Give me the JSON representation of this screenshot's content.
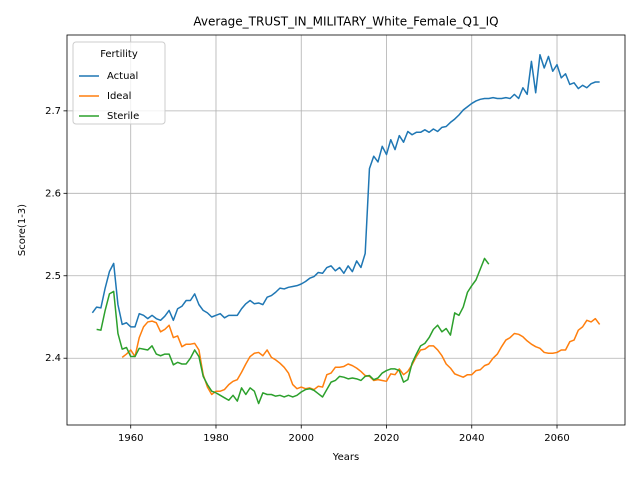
{
  "chart_data": {
    "type": "line",
    "title": "Average_TRUST_IN_MILITARY_White_Female_Q1_IQ",
    "xlabel": "Years",
    "ylabel": "Score(1-3)",
    "x": [
      1951,
      1952,
      1953,
      1954,
      1955,
      1956,
      1957,
      1958,
      1959,
      1960,
      1961,
      1962,
      1963,
      1964,
      1965,
      1966,
      1967,
      1968,
      1969,
      1970,
      1971,
      1972,
      1973,
      1974,
      1975,
      1976,
      1977,
      1978,
      1979,
      1980,
      1981,
      1982,
      1983,
      1984,
      1985,
      1986,
      1987,
      1988,
      1989,
      1990,
      1991,
      1992,
      1993,
      1994,
      1995,
      1996,
      1997,
      1998,
      1999,
      2000,
      2001,
      2002,
      2003,
      2004,
      2005,
      2006,
      2007,
      2008,
      2009,
      2010,
      2011,
      2012,
      2013,
      2014,
      2015,
      2016,
      2017,
      2018,
      2019,
      2020,
      2021,
      2022,
      2023,
      2024,
      2025,
      2026,
      2027,
      2028,
      2029,
      2030,
      2031,
      2032,
      2033,
      2034,
      2035,
      2036,
      2037,
      2038,
      2039,
      2040,
      2041,
      2042,
      2043,
      2044,
      2045,
      2046,
      2047,
      2048,
      2049,
      2050,
      2051,
      2052,
      2053,
      2054,
      2055,
      2056,
      2057,
      2058,
      2059,
      2060,
      2061,
      2062,
      2063,
      2064,
      2065,
      2066,
      2067,
      2068,
      2069,
      2070
    ],
    "series": [
      {
        "name": "Actual",
        "color": "#1f77b4",
        "values": [
          2.455,
          2.462,
          2.461,
          2.485,
          2.505,
          2.515,
          2.465,
          2.441,
          2.443,
          2.438,
          2.438,
          2.454,
          2.452,
          2.448,
          2.452,
          2.448,
          2.446,
          2.451,
          2.458,
          2.446,
          2.46,
          2.463,
          2.47,
          2.47,
          2.478,
          2.465,
          2.458,
          2.455,
          2.45,
          2.452,
          2.454,
          2.449,
          2.452,
          2.452,
          2.452,
          2.46,
          2.466,
          2.47,
          2.466,
          2.467,
          2.465,
          2.474,
          2.476,
          2.48,
          2.485,
          2.484,
          2.486,
          2.487,
          2.488,
          2.49,
          2.493,
          2.497,
          2.499,
          2.504,
          2.503,
          2.51,
          2.512,
          2.506,
          2.51,
          2.503,
          2.512,
          2.505,
          2.518,
          2.51,
          2.527,
          2.63,
          2.645,
          2.638,
          2.657,
          2.647,
          2.665,
          2.653,
          2.67,
          2.662,
          2.675,
          2.671,
          2.674,
          2.674,
          2.677,
          2.674,
          2.678,
          2.675,
          2.68,
          2.681,
          2.686,
          2.69,
          2.695,
          2.701,
          2.705,
          2.709,
          2.712,
          2.714,
          2.715,
          2.715,
          2.716,
          2.715,
          2.715,
          2.716,
          2.715,
          2.72,
          2.715,
          2.728,
          2.72,
          2.76,
          2.722,
          2.768,
          2.752,
          2.766,
          2.748,
          2.756,
          2.74,
          2.745,
          2.732,
          2.734,
          2.727,
          2.731,
          2.728,
          2.733,
          2.735,
          2.735
        ]
      },
      {
        "name": "Ideal",
        "color": "#ff7f0e",
        "values": [
          null,
          null,
          null,
          null,
          null,
          null,
          null,
          2.401,
          2.405,
          2.41,
          2.402,
          2.425,
          2.438,
          2.444,
          2.445,
          2.443,
          2.432,
          2.435,
          2.44,
          2.425,
          2.427,
          2.414,
          2.417,
          2.417,
          2.418,
          2.41,
          2.38,
          2.365,
          2.356,
          2.36,
          2.36,
          2.362,
          2.368,
          2.372,
          2.374,
          2.383,
          2.393,
          2.402,
          2.406,
          2.407,
          2.403,
          2.41,
          2.401,
          2.398,
          2.394,
          2.389,
          2.382,
          2.368,
          2.363,
          2.365,
          2.363,
          2.364,
          2.362,
          2.366,
          2.365,
          2.38,
          2.382,
          2.389,
          2.389,
          2.39,
          2.393,
          2.391,
          2.388,
          2.384,
          2.379,
          2.378,
          2.373,
          2.374,
          2.373,
          2.372,
          2.381,
          2.38,
          2.387,
          2.38,
          2.384,
          2.392,
          2.402,
          2.41,
          2.411,
          2.415,
          2.415,
          2.41,
          2.403,
          2.393,
          2.388,
          2.381,
          2.379,
          2.377,
          2.38,
          2.38,
          2.385,
          2.386,
          2.391,
          2.393,
          2.4,
          2.405,
          2.414,
          2.422,
          2.425,
          2.43,
          2.429,
          2.426,
          2.421,
          2.417,
          2.414,
          2.412,
          2.407,
          2.406,
          2.406,
          2.407,
          2.41,
          2.41,
          2.42,
          2.422,
          2.434,
          2.438,
          2.446,
          2.444,
          2.448,
          2.441
        ]
      },
      {
        "name": "Sterile",
        "color": "#2ca02c",
        "values": [
          null,
          2.435,
          2.434,
          2.458,
          2.478,
          2.481,
          2.43,
          2.411,
          2.413,
          2.402,
          2.402,
          2.412,
          2.411,
          2.41,
          2.415,
          2.405,
          2.403,
          2.405,
          2.405,
          2.392,
          2.395,
          2.393,
          2.393,
          2.4,
          2.41,
          2.402,
          2.378,
          2.368,
          2.36,
          2.358,
          2.355,
          2.352,
          2.349,
          2.355,
          2.348,
          2.364,
          2.356,
          2.364,
          2.36,
          2.345,
          2.358,
          2.356,
          2.356,
          2.354,
          2.355,
          2.353,
          2.355,
          2.353,
          2.355,
          2.359,
          2.362,
          2.363,
          2.361,
          2.357,
          2.353,
          2.362,
          2.371,
          2.373,
          2.378,
          2.377,
          2.375,
          2.376,
          2.375,
          2.373,
          2.378,
          2.379,
          2.374,
          2.376,
          2.382,
          2.385,
          2.387,
          2.387,
          2.385,
          2.371,
          2.374,
          2.394,
          2.405,
          2.415,
          2.418,
          2.425,
          2.435,
          2.44,
          2.432,
          2.436,
          2.428,
          2.455,
          2.452,
          2.462,
          2.48,
          2.488,
          2.495,
          2.508,
          2.521,
          2.514,
          null,
          null,
          null,
          null,
          null,
          null,
          null,
          null,
          null,
          null,
          null,
          null,
          null,
          null,
          null,
          null,
          null,
          null,
          null,
          null,
          null,
          null,
          null,
          null,
          null,
          null
        ]
      }
    ],
    "xlim": [
      1945.05,
      2075.95
    ],
    "ylim": [
      2.319,
      2.792
    ],
    "xticks": [
      1960,
      1980,
      2000,
      2020,
      2040,
      2060
    ],
    "yticks": [
      2.4,
      2.5,
      2.6,
      2.7
    ],
    "grid": true,
    "legend_title": "Fertility",
    "legend_loc": "upper left"
  }
}
